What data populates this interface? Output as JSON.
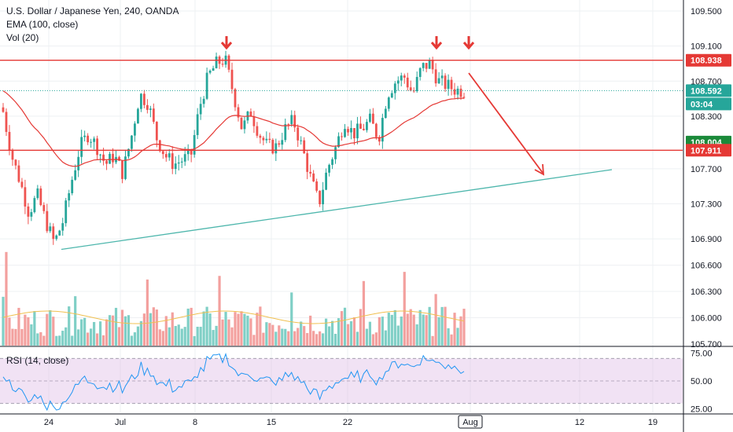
{
  "legend": {
    "title": "U.S. Dollar / Japanese Yen, 240, OANDA",
    "ema": "EMA (100, close)",
    "vol": "Vol (20)",
    "rsi": "RSI (14, close)"
  },
  "colors": {
    "up": "#26a69a",
    "down": "#ef5350",
    "ema": "#e53935",
    "resistance": "#e53935",
    "support_line": "#4db6ac",
    "last_price": "#26a69a",
    "vol_ma": "#f0c050",
    "rsi_line": "#2196f3",
    "rsi_band": "#e1bee7"
  },
  "chart_data": {
    "type": "candlestick",
    "price_axis": {
      "min": 105.7,
      "max": 109.5,
      "ticks": [
        "109.500",
        "108.938",
        "108.592",
        "108.004",
        "107.911",
        "107.700",
        "107.300",
        "106.900",
        "106.600",
        "106.300",
        "106.000",
        "105.700"
      ]
    },
    "x_labels": [
      "24",
      "Jul",
      "8",
      "15",
      "22",
      "Aug",
      "12",
      "19"
    ],
    "x_label_extra": "Aug",
    "resistance_levels": [
      108.938,
      107.911
    ],
    "price_labels": [
      {
        "value": "108.938",
        "kind": "resistance"
      },
      {
        "value": "108.592",
        "kind": "last"
      },
      {
        "value": "03:04",
        "kind": "countdown"
      },
      {
        "value": "108.004",
        "kind": "ema"
      },
      {
        "value": "107.911",
        "kind": "resistance"
      }
    ],
    "last_price": 108.592,
    "ema_value": 108.004,
    "trendline": {
      "from_price": 106.78,
      "to_price": 107.69
    },
    "rsi": {
      "ticks": [
        "75.00",
        "50.00",
        "25.00"
      ],
      "upper": 70,
      "lower": 30
    },
    "close_path": [
      108.35,
      107.85,
      107.55,
      107.2,
      107.4,
      107.1,
      106.85,
      107.1,
      107.55,
      107.95,
      108.1,
      107.95,
      107.75,
      107.85,
      107.65,
      108.05,
      108.55,
      108.45,
      108.05,
      107.85,
      107.75,
      107.8,
      107.85,
      108.4,
      108.75,
      108.9,
      108.95,
      108.55,
      108.15,
      108.35,
      108.1,
      107.95,
      107.95,
      108.15,
      108.25,
      107.95,
      107.6,
      107.3,
      107.7,
      107.95,
      108.25,
      108.1,
      108.15,
      108.25,
      108.05,
      108.55,
      108.7,
      108.75,
      108.55,
      108.85,
      108.9,
      108.7,
      108.65,
      108.6,
      108.59
    ]
  }
}
